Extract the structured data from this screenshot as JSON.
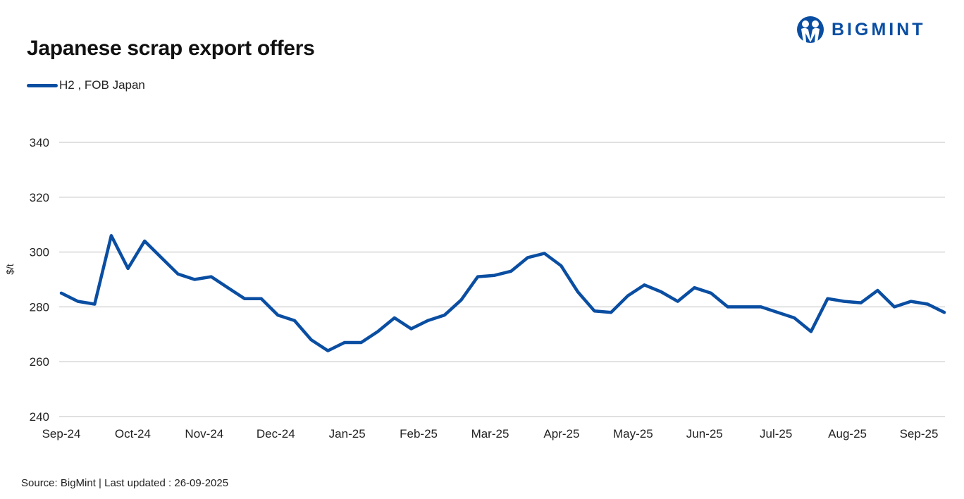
{
  "header": {
    "title": "Japanese scrap export offers",
    "brand": "BIGMINT",
    "brand_color": "#0a4ea2"
  },
  "legend": {
    "label": "H2 , FOB Japan",
    "color": "#0a4ea2"
  },
  "footer": {
    "text": "Source: BigMint  | Last updated : 26-09-2025"
  },
  "chart_data": {
    "type": "line",
    "title": "Japanese scrap export offers",
    "xlabel": "",
    "ylabel": "$/t",
    "ylim": [
      240,
      340
    ],
    "yticks": [
      240,
      260,
      280,
      300,
      320,
      340
    ],
    "grid": true,
    "legend_position": "top-left",
    "x_tick_labels": [
      "Sep-24",
      "Oct-24",
      "Nov-24",
      "Dec-24",
      "Jan-25",
      "Feb-25",
      "Mar-25",
      "Apr-25",
      "May-25",
      "Jun-25",
      "Jul-25",
      "Aug-25",
      "Sep-25"
    ],
    "series": [
      {
        "name": "H2 , FOB Japan",
        "color": "#0a4ea2",
        "values": [
          285,
          282,
          281,
          306,
          294,
          304,
          298,
          292,
          290,
          291,
          287,
          283,
          283,
          277,
          275,
          268,
          264,
          267,
          267,
          271,
          276,
          272,
          275,
          277,
          282.5,
          291,
          291.5,
          293,
          298,
          299.5,
          295,
          285.5,
          278.5,
          278,
          284,
          288,
          285.5,
          282,
          287,
          285,
          280,
          280,
          280,
          278,
          276,
          271,
          283,
          282,
          281.5,
          286,
          280,
          282,
          281,
          278
        ]
      }
    ]
  }
}
